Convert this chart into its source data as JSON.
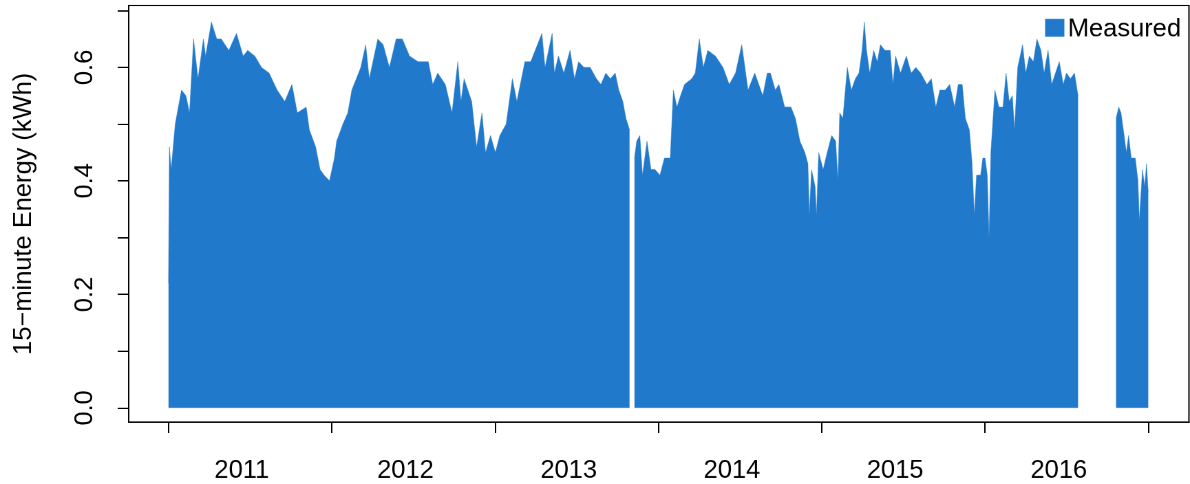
{
  "chart_data": {
    "type": "area",
    "ylabel": "15−minute Energy (kWh)",
    "xlim": [
      "2010-10-04",
      "2017-04-01"
    ],
    "xticks": [
      {
        "value": "2011-01-01",
        "label": null
      },
      {
        "value": "2011-06-14",
        "label": "2011"
      },
      {
        "value": "2012-01-01",
        "label": null
      },
      {
        "value": "2012-06-14",
        "label": "2012"
      },
      {
        "value": "2013-01-01",
        "label": null
      },
      {
        "value": "2013-06-14",
        "label": "2013"
      },
      {
        "value": "2014-01-01",
        "label": null
      },
      {
        "value": "2014-06-14",
        "label": "2014"
      },
      {
        "value": "2015-01-01",
        "label": null
      },
      {
        "value": "2015-06-14",
        "label": "2015"
      },
      {
        "value": "2016-01-01",
        "label": null
      },
      {
        "value": "2016-06-14",
        "label": "2016"
      },
      {
        "value": "2017-01-01",
        "label": null
      }
    ],
    "ylim": [
      -0.025,
      0.709
    ],
    "yticks": [
      {
        "value": 0,
        "label": "0.0"
      },
      {
        "value": 0.1,
        "label": null
      },
      0.2,
      {
        "value": 0.3,
        "label": null
      },
      0.4,
      {
        "value": 0.5,
        "label": null
      },
      0.6,
      {
        "value": 0.7,
        "label": null
      }
    ],
    "x": [
      "2011-01-01",
      "2011-01-03",
      "2011-01-07",
      "2011-01-16",
      "2011-01-30",
      "2011-02-09",
      "2011-02-17",
      "2011-02-26",
      "2011-03-08",
      "2011-03-20",
      "2011-03-25",
      "2011-04-07",
      "2011-04-19",
      "2011-04-29",
      "2011-05-16",
      "2011-06-02",
      "2011-06-17",
      "2011-06-27",
      "2011-07-13",
      "2011-07-28",
      "2011-08-14",
      "2011-09-01",
      "2011-09-18",
      "2011-10-04",
      "2011-10-16",
      "2011-11-05",
      "2011-11-12",
      "2011-11-26",
      "2011-12-06",
      "2011-12-15",
      "2011-12-27",
      "2012-01-07",
      "2012-01-12",
      "2012-01-26",
      "2012-02-06",
      "2012-02-15",
      "2012-02-25",
      "2012-03-06",
      "2012-03-17",
      "2012-03-25",
      "2012-04-13",
      "2012-04-25",
      "2012-05-09",
      "2012-05-24",
      "2012-06-07",
      "2012-06-23",
      "2012-07-12",
      "2012-08-04",
      "2012-08-14",
      "2012-08-25",
      "2012-09-11",
      "2012-09-26",
      "2012-10-09",
      "2012-10-16",
      "2012-10-23",
      "2012-11-09",
      "2012-11-20",
      "2012-12-02",
      "2012-12-10",
      "2012-12-21",
      "2013-01-01",
      "2013-01-11",
      "2013-01-25",
      "2013-02-08",
      "2013-02-18",
      "2013-03-08",
      "2013-03-21",
      "2013-03-31",
      "2013-04-15",
      "2013-04-22",
      "2013-05-08",
      "2013-05-13",
      "2013-05-22",
      "2013-06-03",
      "2013-06-17",
      "2013-06-27",
      "2013-07-06",
      "2013-07-18",
      "2013-08-01",
      "2013-08-15",
      "2013-08-25",
      "2013-09-05",
      "2013-09-15",
      "2013-09-26",
      "2013-10-04",
      "2013-10-13",
      "2013-10-20",
      "2013-10-28",
      "2013-11-02",
      "2013-11-08",
      "2013-11-13",
      "2013-11-20",
      "2013-11-26",
      "2013-12-06",
      "2013-12-15",
      "2013-12-24",
      "2014-01-04",
      "2014-01-14",
      "2014-01-27",
      "2014-02-03",
      "2014-02-11",
      "2014-02-19",
      "2014-02-28",
      "2014-03-16",
      "2014-03-24",
      "2014-04-02",
      "2014-04-11",
      "2014-04-21",
      "2014-05-08",
      "2014-05-25",
      "2014-06-08",
      "2014-06-22",
      "2014-07-06",
      "2014-07-20",
      "2014-08-04",
      "2014-08-22",
      "2014-09-01",
      "2014-09-08",
      "2014-09-19",
      "2014-09-27",
      "2014-10-10",
      "2014-10-24",
      "2014-11-03",
      "2014-11-13",
      "2014-11-24",
      "2014-12-01",
      "2014-12-04",
      "2014-12-09",
      "2014-12-17",
      "2014-12-20",
      "2014-12-25",
      "2015-01-04",
      "2015-01-13",
      "2015-01-23",
      "2015-02-01",
      "2015-02-06",
      "2015-02-10",
      "2015-02-17",
      "2015-02-27",
      "2015-03-08",
      "2015-03-17",
      "2015-03-25",
      "2015-04-01",
      "2015-04-06",
      "2015-04-11",
      "2015-04-18",
      "2015-04-27",
      "2015-05-05",
      "2015-05-12",
      "2015-05-22",
      "2015-06-03",
      "2015-06-09",
      "2015-06-15",
      "2015-06-26",
      "2015-07-09",
      "2015-07-20",
      "2015-07-30",
      "2015-08-10",
      "2015-08-24",
      "2015-09-03",
      "2015-09-13",
      "2015-09-22",
      "2015-10-04",
      "2015-10-14",
      "2015-10-25",
      "2015-11-02",
      "2015-11-11",
      "2015-11-18",
      "2015-11-27",
      "2015-12-03",
      "2015-12-08",
      "2015-12-13",
      "2015-12-22",
      "2015-12-27",
      "2016-01-01",
      "2016-01-06",
      "2016-01-10",
      "2016-01-14",
      "2016-01-23",
      "2016-02-01",
      "2016-02-10",
      "2016-02-17",
      "2016-02-24",
      "2016-03-02",
      "2016-03-07",
      "2016-03-14",
      "2016-03-25",
      "2016-04-01",
      "2016-04-09",
      "2016-04-18",
      "2016-04-26",
      "2016-05-05",
      "2016-05-12",
      "2016-05-21",
      "2016-05-29",
      "2016-06-15",
      "2016-06-24",
      "2016-07-01",
      "2016-07-10",
      "2016-07-19",
      "2016-07-27",
      "2016-09-10",
      "2016-10-20",
      "2016-10-26",
      "2016-10-31",
      "2016-11-07",
      "2016-11-12",
      "2016-11-17",
      "2016-11-23",
      "2016-12-02",
      "2016-12-08",
      "2016-12-11",
      "2016-12-18",
      "2016-12-23",
      "2016-12-27",
      "2016-12-31"
    ],
    "series": [
      {
        "name": "Measured",
        "color": "#2179cc",
        "values": [
          0.22,
          0.46,
          0.42,
          0.5,
          0.56,
          0.55,
          0.52,
          0.65,
          0.58,
          0.65,
          0.62,
          0.68,
          0.65,
          0.65,
          0.63,
          0.66,
          0.62,
          0.63,
          0.62,
          0.6,
          0.59,
          0.56,
          0.54,
          0.57,
          0.52,
          0.53,
          0.49,
          0.46,
          0.42,
          0.41,
          0.4,
          0.44,
          0.47,
          0.5,
          0.52,
          0.56,
          0.58,
          0.6,
          0.64,
          0.58,
          0.65,
          0.64,
          0.6,
          0.65,
          0.65,
          0.62,
          0.61,
          0.61,
          0.57,
          0.59,
          0.57,
          0.52,
          0.61,
          0.54,
          0.58,
          0.54,
          0.46,
          0.52,
          0.45,
          0.48,
          0.45,
          0.48,
          0.5,
          0.58,
          0.54,
          0.61,
          0.61,
          0.63,
          0.66,
          0.6,
          0.66,
          0.59,
          0.62,
          0.59,
          0.63,
          0.58,
          0.61,
          0.6,
          0.6,
          0.58,
          0.57,
          0.59,
          0.58,
          0.59,
          0.56,
          0.54,
          0.51,
          0.49,
          null,
          0.44,
          0.47,
          0.48,
          0.41,
          0.47,
          0.42,
          0.42,
          0.41,
          0.44,
          0.44,
          0.56,
          0.53,
          0.55,
          0.57,
          0.58,
          0.59,
          0.65,
          0.6,
          0.63,
          0.62,
          0.6,
          0.57,
          0.59,
          0.64,
          0.56,
          0.59,
          0.55,
          0.59,
          0.59,
          0.56,
          0.57,
          0.53,
          0.53,
          0.51,
          0.47,
          0.45,
          0.43,
          0.34,
          0.42,
          0.39,
          0.34,
          0.45,
          0.42,
          0.45,
          0.48,
          0.47,
          0.4,
          0.52,
          0.51,
          0.6,
          0.56,
          0.58,
          0.59,
          0.63,
          0.68,
          0.63,
          0.59,
          0.63,
          0.61,
          0.64,
          0.63,
          0.63,
          0.57,
          0.62,
          0.59,
          0.62,
          0.59,
          0.6,
          0.59,
          0.57,
          0.58,
          0.53,
          0.56,
          0.56,
          0.57,
          0.53,
          0.57,
          0.57,
          0.51,
          0.49,
          0.43,
          0.34,
          0.41,
          0.41,
          0.44,
          0.44,
          0.41,
          0.3,
          0.45,
          0.56,
          0.53,
          0.53,
          0.59,
          0.54,
          0.55,
          0.49,
          0.6,
          0.64,
          0.59,
          0.62,
          0.61,
          0.65,
          0.63,
          0.59,
          0.63,
          0.57,
          0.61,
          0.57,
          0.59,
          0.58,
          0.59,
          0.55,
          null,
          0.51,
          0.53,
          0.52,
          0.48,
          0.45,
          0.48,
          0.44,
          0.44,
          0.4,
          0.33,
          0.42,
          0.39,
          0.43,
          0.38
        ]
      }
    ],
    "legend": "top right"
  }
}
